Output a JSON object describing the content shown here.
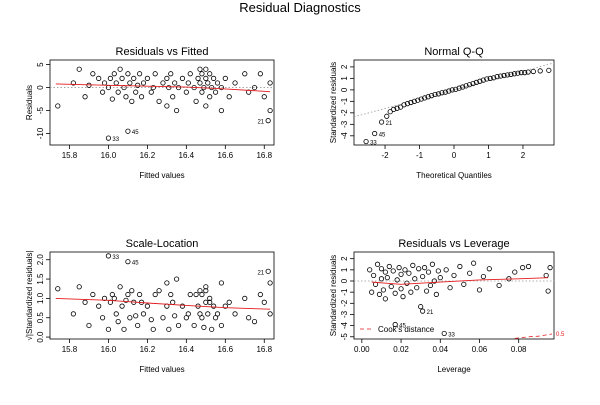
{
  "title": "Residual Diagnostics",
  "chart_data": [
    {
      "type": "scatter",
      "title": "Residuals vs Fitted",
      "xlabel": "Fitted values",
      "ylabel": "Residuals",
      "xlim": [
        15.7,
        16.85
      ],
      "ylim": [
        -12.5,
        6
      ],
      "xticks": [
        15.8,
        16.0,
        16.2,
        16.4,
        16.6,
        16.8
      ],
      "xtick_labels": [
        "15.8",
        "16.0",
        "16.2",
        "16.4",
        "16.6",
        "16.8"
      ],
      "yticks": [
        -10,
        -5,
        0,
        5
      ],
      "ytick_labels": [
        "-10",
        "-5",
        "0",
        "5"
      ],
      "hline": 0,
      "smooth": [
        [
          15.73,
          0.8
        ],
        [
          16.0,
          0.5
        ],
        [
          16.2,
          0.3
        ],
        [
          16.4,
          0.1
        ],
        [
          16.6,
          -0.3
        ],
        [
          16.83,
          -0.9
        ]
      ],
      "labels": [
        {
          "text": "33",
          "x": 16.0,
          "y": -11.0
        },
        {
          "text": "45",
          "x": 16.1,
          "y": -9.5
        },
        {
          "text": "21",
          "x": 16.82,
          "y": -7.2
        }
      ],
      "points": [
        [
          15.74,
          -4
        ],
        [
          15.82,
          1
        ],
        [
          15.85,
          4
        ],
        [
          15.88,
          -2
        ],
        [
          15.9,
          0.5
        ],
        [
          15.92,
          3
        ],
        [
          15.95,
          2
        ],
        [
          15.97,
          -1
        ],
        [
          15.98,
          1
        ],
        [
          16.0,
          -11
        ],
        [
          16.0,
          0
        ],
        [
          16.01,
          2
        ],
        [
          16.02,
          -2.5
        ],
        [
          16.03,
          3
        ],
        [
          16.04,
          1
        ],
        [
          16.05,
          -1
        ],
        [
          16.06,
          4
        ],
        [
          16.07,
          2
        ],
        [
          16.08,
          0
        ],
        [
          16.09,
          -2
        ],
        [
          16.1,
          -9.5
        ],
        [
          16.1,
          3
        ],
        [
          16.11,
          1
        ],
        [
          16.12,
          -3
        ],
        [
          16.13,
          2
        ],
        [
          16.14,
          -1
        ],
        [
          16.15,
          0.5
        ],
        [
          16.16,
          3
        ],
        [
          16.17,
          -2
        ],
        [
          16.18,
          1
        ],
        [
          16.2,
          2
        ],
        [
          16.22,
          -1
        ],
        [
          16.23,
          0
        ],
        [
          16.24,
          3
        ],
        [
          16.26,
          -3
        ],
        [
          16.28,
          1
        ],
        [
          16.3,
          -4
        ],
        [
          16.3,
          2
        ],
        [
          16.31,
          0
        ],
        [
          16.32,
          3
        ],
        [
          16.33,
          -2
        ],
        [
          16.34,
          1
        ],
        [
          16.35,
          -5
        ],
        [
          16.36,
          0
        ],
        [
          16.38,
          2
        ],
        [
          16.4,
          -1
        ],
        [
          16.41,
          1
        ],
        [
          16.42,
          3
        ],
        [
          16.44,
          0
        ],
        [
          16.45,
          -3
        ],
        [
          16.46,
          2
        ],
        [
          16.47,
          4
        ],
        [
          16.47,
          1
        ],
        [
          16.48,
          -1
        ],
        [
          16.48,
          3
        ],
        [
          16.49,
          0
        ],
        [
          16.5,
          2
        ],
        [
          16.5,
          -4
        ],
        [
          16.5,
          4
        ],
        [
          16.51,
          1
        ],
        [
          16.52,
          -2
        ],
        [
          16.52,
          3
        ],
        [
          16.53,
          0
        ],
        [
          16.54,
          2
        ],
        [
          16.55,
          -1
        ],
        [
          16.56,
          1
        ],
        [
          16.58,
          -5
        ],
        [
          16.58,
          0
        ],
        [
          16.6,
          2
        ],
        [
          16.62,
          -2
        ],
        [
          16.65,
          1
        ],
        [
          16.7,
          3
        ],
        [
          16.72,
          -1
        ],
        [
          16.75,
          0
        ],
        [
          16.78,
          3
        ],
        [
          16.8,
          -2
        ],
        [
          16.82,
          -7.2
        ],
        [
          16.83,
          -5
        ],
        [
          16.83,
          1
        ]
      ]
    },
    {
      "type": "scatter",
      "title": "Normal Q-Q",
      "xlabel": "Theoretical Quantiles",
      "ylabel": "Standardized residuals",
      "xlim": [
        -2.9,
        2.9
      ],
      "ylim": [
        -4.8,
        2.6
      ],
      "xticks": [
        -2,
        -1,
        0,
        1,
        2
      ],
      "xtick_labels": [
        "-2",
        "-1",
        "0",
        "1",
        "2"
      ],
      "yticks": [
        -4,
        -3,
        -2,
        -1,
        0,
        1,
        2
      ],
      "ytick_labels": [
        "-4",
        "-3",
        "-2",
        "-1",
        "0",
        "1",
        "2"
      ],
      "refline": [
        [
          -2.9,
          -2.35
        ],
        [
          2.9,
          2.35
        ]
      ],
      "labels": [
        {
          "text": "33",
          "x": -2.55,
          "y": -4.5
        },
        {
          "text": "45",
          "x": -2.3,
          "y": -3.8
        },
        {
          "text": "21",
          "x": -2.1,
          "y": -2.8
        }
      ],
      "points": [
        [
          -2.55,
          -4.5
        ],
        [
          -2.3,
          -3.8
        ],
        [
          -2.1,
          -2.8
        ],
        [
          -1.95,
          -2.3
        ],
        [
          -1.85,
          -1.9
        ],
        [
          -1.75,
          -1.7
        ],
        [
          -1.65,
          -1.6
        ],
        [
          -1.55,
          -1.5
        ],
        [
          -1.45,
          -1.3
        ],
        [
          -1.35,
          -1.2
        ],
        [
          -1.25,
          -1.1
        ],
        [
          -1.15,
          -1.0
        ],
        [
          -1.05,
          -0.9
        ],
        [
          -0.95,
          -0.8
        ],
        [
          -0.85,
          -0.7
        ],
        [
          -0.75,
          -0.6
        ],
        [
          -0.65,
          -0.5
        ],
        [
          -0.55,
          -0.4
        ],
        [
          -0.45,
          -0.35
        ],
        [
          -0.35,
          -0.25
        ],
        [
          -0.25,
          -0.2
        ],
        [
          -0.15,
          -0.1
        ],
        [
          -0.05,
          0.0
        ],
        [
          0.05,
          0.05
        ],
        [
          0.15,
          0.15
        ],
        [
          0.25,
          0.25
        ],
        [
          0.35,
          0.35
        ],
        [
          0.45,
          0.45
        ],
        [
          0.55,
          0.55
        ],
        [
          0.65,
          0.65
        ],
        [
          0.75,
          0.75
        ],
        [
          0.85,
          0.85
        ],
        [
          0.95,
          0.95
        ],
        [
          1.05,
          1.0
        ],
        [
          1.15,
          1.05
        ],
        [
          1.25,
          1.15
        ],
        [
          1.35,
          1.2
        ],
        [
          1.45,
          1.25
        ],
        [
          1.55,
          1.3
        ],
        [
          1.65,
          1.35
        ],
        [
          1.75,
          1.4
        ],
        [
          1.85,
          1.45
        ],
        [
          1.95,
          1.5
        ],
        [
          2.05,
          1.5
        ],
        [
          2.15,
          1.55
        ],
        [
          2.3,
          1.6
        ],
        [
          2.5,
          1.65
        ],
        [
          2.75,
          1.7
        ]
      ]
    },
    {
      "type": "scatter",
      "title": "Scale-Location",
      "xlabel": "Fitted values",
      "ylabel": "√|Standardized residuals|",
      "xlim": [
        15.7,
        16.85
      ],
      "ylim": [
        -0.05,
        2.2
      ],
      "xticks": [
        15.8,
        16.0,
        16.2,
        16.4,
        16.6,
        16.8
      ],
      "xtick_labels": [
        "15.8",
        "16.0",
        "16.2",
        "16.4",
        "16.6",
        "16.8"
      ],
      "yticks": [
        0.0,
        0.5,
        1.0,
        1.5,
        2.0
      ],
      "ytick_labels": [
        "0.0",
        "0.5",
        "1.0",
        "1.5",
        "2.0"
      ],
      "smooth": [
        [
          15.73,
          1.0
        ],
        [
          16.0,
          0.95
        ],
        [
          16.2,
          0.88
        ],
        [
          16.4,
          0.82
        ],
        [
          16.6,
          0.76
        ],
        [
          16.83,
          0.72
        ]
      ],
      "labels": [
        {
          "text": "33",
          "x": 16.0,
          "y": 2.1
        },
        {
          "text": "45",
          "x": 16.1,
          "y": 1.95
        },
        {
          "text": "21",
          "x": 16.82,
          "y": 1.7
        }
      ],
      "points": [
        [
          15.74,
          1.25
        ],
        [
          15.82,
          0.6
        ],
        [
          15.85,
          1.3
        ],
        [
          15.88,
          0.9
        ],
        [
          15.9,
          0.3
        ],
        [
          15.92,
          1.1
        ],
        [
          15.95,
          0.8
        ],
        [
          15.97,
          0.5
        ],
        [
          15.98,
          1.0
        ],
        [
          16.0,
          2.1
        ],
        [
          16.0,
          0.2
        ],
        [
          16.01,
          0.9
        ],
        [
          16.02,
          1.1
        ],
        [
          16.03,
          1.0
        ],
        [
          16.04,
          0.6
        ],
        [
          16.05,
          0.4
        ],
        [
          16.06,
          1.3
        ],
        [
          16.07,
          0.8
        ],
        [
          16.08,
          0.2
        ],
        [
          16.09,
          0.95
        ],
        [
          16.1,
          1.95
        ],
        [
          16.1,
          1.1
        ],
        [
          16.11,
          0.5
        ],
        [
          16.12,
          1.2
        ],
        [
          16.13,
          0.9
        ],
        [
          16.14,
          0.55
        ],
        [
          16.15,
          0.3
        ],
        [
          16.16,
          1.1
        ],
        [
          16.17,
          0.9
        ],
        [
          16.18,
          0.6
        ],
        [
          16.2,
          0.8
        ],
        [
          16.22,
          0.45
        ],
        [
          16.23,
          0.2
        ],
        [
          16.24,
          1.1
        ],
        [
          16.26,
          1.2
        ],
        [
          16.28,
          0.5
        ],
        [
          16.3,
          1.4
        ],
        [
          16.3,
          0.8
        ],
        [
          16.31,
          0.2
        ],
        [
          16.32,
          1.1
        ],
        [
          16.33,
          0.9
        ],
        [
          16.34,
          0.55
        ],
        [
          16.35,
          1.5
        ],
        [
          16.36,
          0.3
        ],
        [
          16.38,
          0.8
        ],
        [
          16.4,
          0.5
        ],
        [
          16.41,
          0.6
        ],
        [
          16.42,
          1.1
        ],
        [
          16.44,
          0.3
        ],
        [
          16.45,
          1.1
        ],
        [
          16.46,
          0.8
        ],
        [
          16.47,
          1.2
        ],
        [
          16.47,
          0.6
        ],
        [
          16.48,
          0.5
        ],
        [
          16.48,
          1.1
        ],
        [
          16.49,
          0.25
        ],
        [
          16.5,
          0.9
        ],
        [
          16.5,
          1.2
        ],
        [
          16.5,
          1.3
        ],
        [
          16.51,
          0.6
        ],
        [
          16.52,
          0.9
        ],
        [
          16.52,
          1.0
        ],
        [
          16.53,
          0.2
        ],
        [
          16.54,
          0.8
        ],
        [
          16.55,
          0.5
        ],
        [
          16.56,
          0.6
        ],
        [
          16.58,
          1.4
        ],
        [
          16.58,
          0.3
        ],
        [
          16.6,
          0.8
        ],
        [
          16.62,
          0.9
        ],
        [
          16.65,
          0.6
        ],
        [
          16.7,
          1.0
        ],
        [
          16.72,
          0.5
        ],
        [
          16.75,
          0.4
        ],
        [
          16.78,
          1.1
        ],
        [
          16.8,
          0.9
        ],
        [
          16.82,
          1.7
        ],
        [
          16.83,
          1.4
        ],
        [
          16.83,
          0.6
        ]
      ]
    },
    {
      "type": "scatter",
      "title": "Residuals vs Leverage",
      "xlabel": "Leverage",
      "ylabel": "Standardized residuals",
      "xlim": [
        -0.004,
        0.098
      ],
      "ylim": [
        -5.2,
        2.6
      ],
      "xticks": [
        0.0,
        0.02,
        0.04,
        0.06,
        0.08
      ],
      "xtick_labels": [
        "0.00",
        "0.02",
        "0.04",
        "0.06",
        "0.08"
      ],
      "yticks": [
        -5,
        -4,
        -3,
        -2,
        -1,
        0,
        1,
        2
      ],
      "ytick_labels": [
        "-5",
        "-4",
        "-3",
        "-2",
        "-1",
        "0",
        "1",
        "2"
      ],
      "hline": 0,
      "smooth": [
        [
          0.005,
          -0.1
        ],
        [
          0.02,
          -0.3
        ],
        [
          0.04,
          -0.1
        ],
        [
          0.06,
          0.1
        ],
        [
          0.08,
          0.2
        ],
        [
          0.095,
          0.3
        ]
      ],
      "cook_curve": [
        [
          0.078,
          -5.15
        ],
        [
          0.085,
          -5.0
        ],
        [
          0.09,
          -4.95
        ],
        [
          0.097,
          -4.75
        ]
      ],
      "cook_label": "0.5",
      "legend": {
        "text": "Cook's distance",
        "position": "bottom-left"
      },
      "labels": [
        {
          "text": "33",
          "x": 0.042,
          "y": -4.7
        },
        {
          "text": "45",
          "x": 0.017,
          "y": -3.9
        },
        {
          "text": "21",
          "x": 0.031,
          "y": -2.7
        }
      ],
      "points": [
        [
          0.004,
          1
        ],
        [
          0.005,
          -1
        ],
        [
          0.006,
          0.5
        ],
        [
          0.007,
          -0.3
        ],
        [
          0.008,
          1.5
        ],
        [
          0.009,
          -1.2
        ],
        [
          0.01,
          0.2
        ],
        [
          0.01,
          1.1
        ],
        [
          0.011,
          -0.8
        ],
        [
          0.012,
          0.8
        ],
        [
          0.012,
          -1.6
        ],
        [
          0.013,
          0.3
        ],
        [
          0.014,
          1.3
        ],
        [
          0.015,
          -0.5
        ],
        [
          0.016,
          0.9
        ],
        [
          0.017,
          -3.9
        ],
        [
          0.017,
          -1.1
        ],
        [
          0.018,
          0.1
        ],
        [
          0.019,
          1.2
        ],
        [
          0.02,
          -0.7
        ],
        [
          0.02,
          0.6
        ],
        [
          0.021,
          -1.4
        ],
        [
          0.022,
          1.0
        ],
        [
          0.023,
          -0.2
        ],
        [
          0.024,
          0.7
        ],
        [
          0.025,
          -1.0
        ],
        [
          0.026,
          1.4
        ],
        [
          0.027,
          0.2
        ],
        [
          0.028,
          -0.6
        ],
        [
          0.029,
          1.1
        ],
        [
          0.03,
          -2.3
        ],
        [
          0.031,
          -2.7
        ],
        [
          0.031,
          0.4
        ],
        [
          0.032,
          1.2
        ],
        [
          0.033,
          -0.9
        ],
        [
          0.034,
          0.8
        ],
        [
          0.035,
          -0.4
        ],
        [
          0.036,
          1.5
        ],
        [
          0.037,
          0.0
        ],
        [
          0.038,
          -1.2
        ],
        [
          0.039,
          0.9
        ],
        [
          0.04,
          0.3
        ],
        [
          0.042,
          -4.7
        ],
        [
          0.043,
          1.0
        ],
        [
          0.045,
          -0.6
        ],
        [
          0.047,
          0.5
        ],
        [
          0.05,
          1.3
        ],
        [
          0.052,
          -0.3
        ],
        [
          0.055,
          0.7
        ],
        [
          0.057,
          1.6
        ],
        [
          0.06,
          -0.8
        ],
        [
          0.062,
          0.4
        ],
        [
          0.065,
          1.1
        ],
        [
          0.07,
          -0.4
        ],
        [
          0.075,
          0.2
        ],
        [
          0.078,
          0.8
        ],
        [
          0.082,
          1.2
        ],
        [
          0.085,
          1.3
        ],
        [
          0.094,
          0.5
        ],
        [
          0.095,
          -0.9
        ],
        [
          0.096,
          1.2
        ]
      ]
    }
  ]
}
